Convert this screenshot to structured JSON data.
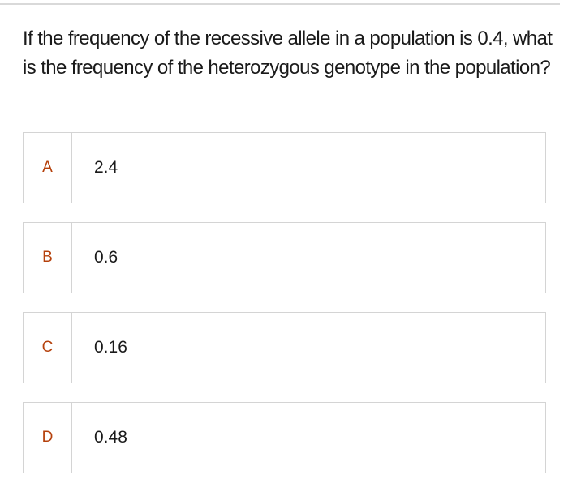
{
  "question": "If the frequency of the recessive allele in a population is 0.4, what is the frequency of the heterozygous genotype in the population?",
  "options": [
    {
      "letter": "A",
      "value": "2.4"
    },
    {
      "letter": "B",
      "value": "0.6"
    },
    {
      "letter": "C",
      "value": "0.16"
    },
    {
      "letter": "D",
      "value": "0.48"
    }
  ],
  "colors": {
    "letter": "#b5410c",
    "border": "#d4d4d4",
    "text": "#1a1a1a"
  }
}
